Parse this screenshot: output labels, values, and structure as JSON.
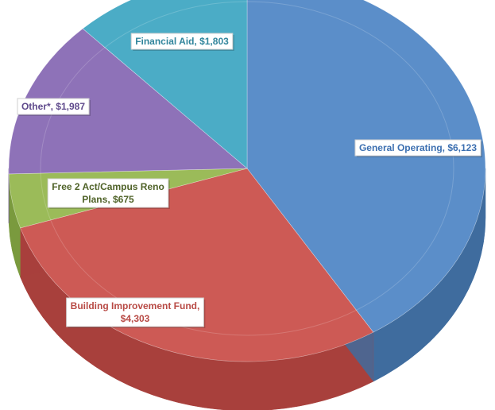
{
  "chart_data": {
    "type": "pie",
    "title": "",
    "series": [
      {
        "label_lines": [
          "General Operating, $6,123"
        ],
        "category": "General Operating",
        "value": 6123,
        "value_label": "$6,123",
        "color": "#5B8EC9",
        "side_color": "#3F6C9E",
        "text_color": "#3C6FB0"
      },
      {
        "label_lines": [
          "Building Improvement Fund,",
          "$4,303"
        ],
        "category": "Building Improvement Fund",
        "value": 4303,
        "value_label": "$4,303",
        "color": "#CD5A55",
        "side_color": "#A8403C",
        "text_color": "#B84A45"
      },
      {
        "label_lines": [
          "Free 2 Act/Campus Reno",
          "Plans, $675"
        ],
        "category": "Free 2 Act/Campus Reno Plans",
        "value": 675,
        "value_label": "$675",
        "color": "#9BBB59",
        "side_color": "#7A9A3E",
        "text_color": "#4F6228"
      },
      {
        "label_lines": [
          "Other*, $1,987"
        ],
        "category": "Other*",
        "value": 1987,
        "value_label": "$1,987",
        "color": "#8E72B8",
        "side_color": "#6E5596",
        "text_color": "#5F4A8C"
      },
      {
        "label_lines": [
          "Financial Aid, $1,803"
        ],
        "category": "Financial Aid",
        "value": 1803,
        "value_label": "$1,803",
        "color": "#4BACC6",
        "side_color": "#338BA3",
        "text_color": "#31859C"
      }
    ]
  }
}
